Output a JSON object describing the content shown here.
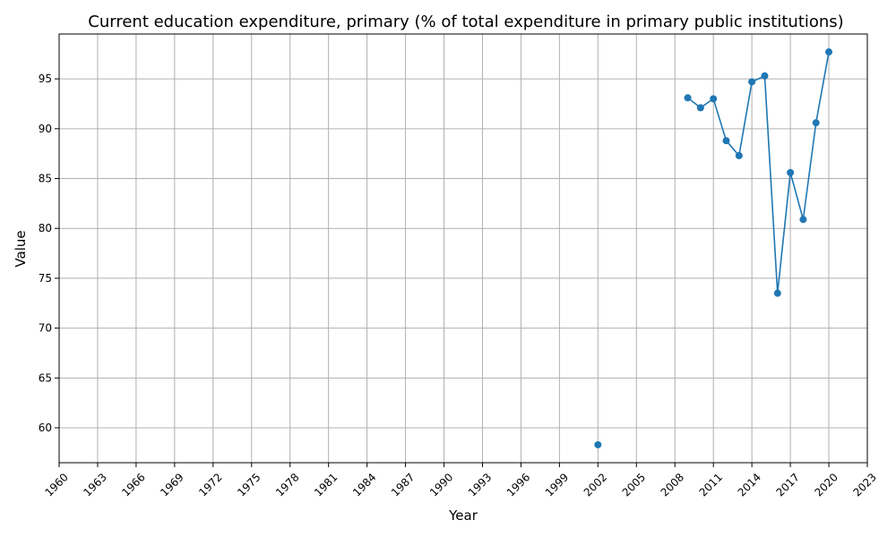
{
  "chart_data": {
    "type": "line",
    "title": "Current education expenditure, primary (% of total expenditure in primary public institutions)",
    "xlabel": "Year",
    "ylabel": "Value",
    "xlim": [
      1960,
      2023
    ],
    "ylim": [
      56.5,
      99.5
    ],
    "grid": true,
    "x_ticks": [
      1960,
      1963,
      1966,
      1969,
      1972,
      1975,
      1978,
      1981,
      1984,
      1987,
      1990,
      1993,
      1996,
      1999,
      2002,
      2005,
      2008,
      2011,
      2014,
      2017,
      2020,
      2023
    ],
    "y_ticks": [
      60,
      65,
      70,
      75,
      80,
      85,
      90,
      95
    ],
    "series": [
      {
        "color": "#1f77b4",
        "points": [
          {
            "x": 2002,
            "y": 58.3
          },
          {
            "x": 2009,
            "y": 93.1
          },
          {
            "x": 2010,
            "y": 92.1
          },
          {
            "x": 2011,
            "y": 93.0
          },
          {
            "x": 2012,
            "y": 88.8
          },
          {
            "x": 2013,
            "y": 87.3
          },
          {
            "x": 2014,
            "y": 94.7
          },
          {
            "x": 2015,
            "y": 95.3
          },
          {
            "x": 2016,
            "y": 73.5
          },
          {
            "x": 2017,
            "y": 85.6
          },
          {
            "x": 2018,
            "y": 80.9
          },
          {
            "x": 2019,
            "y": 90.6
          },
          {
            "x": 2020,
            "y": 97.7
          }
        ]
      }
    ]
  }
}
